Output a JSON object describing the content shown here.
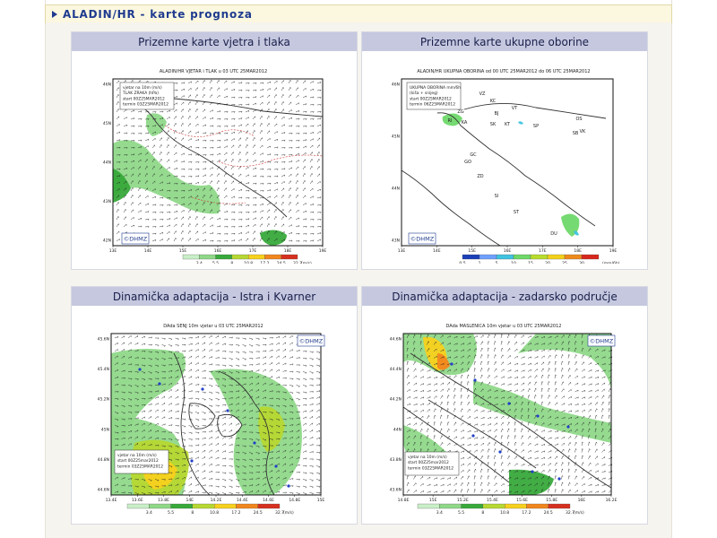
{
  "header": {
    "title": "ALADIN/HR - karte prognoza"
  },
  "colors": {
    "header_text": "#1f3b8f",
    "panel_title_bg": "#c5c8df",
    "land": "#ffffff",
    "sea": "#ffffff"
  },
  "panels": [
    {
      "title": "Prizemne karte vjetra i tlaka",
      "map_title": "ALADIN/HR VJETAR i TLAK u 03 UTC 25MAR2012",
      "legend_lines": [
        "vjetar na 10m (m/s)",
        "TLAK ZRAKA (hPa)",
        "start 00Z25MAR2012",
        "termin 03Z25MAR2012"
      ],
      "logo": "©DHMZ",
      "x_ticks": [
        "13E",
        "14E",
        "15E",
        "16E",
        "17E",
        "18E",
        "19E"
      ],
      "y_ticks": [
        "46N",
        "45N",
        "44N",
        "43N",
        "42N"
      ],
      "scale_values": [
        "3.4",
        "5.5",
        "8",
        "10.8",
        "17.2",
        "24.5",
        "32.7"
      ],
      "scale_unit": "(m/s)"
    },
    {
      "title": "Prizemne karte ukupne oborine",
      "map_title": "ALADIN/HR UKUPNA OBORINA od 00 UTC 25MAR2012 do 06 UTC 25MAR2012",
      "legend_lines": [
        "UKUPNA OBORINA mm/6h",
        "(kiša + snijeg)",
        "start 00Z25MAR2012",
        "termin 06Z25MAR2012"
      ],
      "logo": "©DHMZ",
      "x_ticks": [
        "13E",
        "14E",
        "15E",
        "16E",
        "17E",
        "18E",
        "19E"
      ],
      "y_ticks": [
        "46N",
        "45N",
        "44N",
        "43N"
      ],
      "city_codes": [
        "VZ",
        "KC",
        "ZG",
        "BJ",
        "VT",
        "KA",
        "SK",
        "KT",
        "OS",
        "GO",
        "SP",
        "SB",
        "VK",
        "RI",
        "GC",
        "ZD",
        "SI",
        "ST",
        "DU"
      ],
      "scale_values": [
        "0.5",
        "1",
        "5",
        "10",
        "15",
        "20",
        "25",
        "30"
      ],
      "scale_unit": "(mm/6h)"
    },
    {
      "title": "Dinamička adaptacija - Istra i Kvarner",
      "map_title": "DAda SENJ 10m vjetar u 03 UTC 25MAR2012",
      "legend_lines": [
        "vjetar na 10m (m/s)",
        "start 00Z25mar2012",
        "termin 03Z25MAR2012"
      ],
      "logo": "©DHMZ",
      "x_ticks": [
        "13.4E",
        "13.6E",
        "13.8E",
        "14E",
        "14.2E",
        "14.4E",
        "14.6E",
        "14.8E",
        "15E"
      ],
      "y_ticks": [
        "45.6N",
        "45.4N",
        "45.2N",
        "45N",
        "44.8N",
        "44.6N"
      ],
      "scale_values": [
        "3.4",
        "5.5",
        "8",
        "10.8",
        "17.2",
        "24.5",
        "32.7"
      ],
      "scale_unit": "(m/s)"
    },
    {
      "title": "Dinamička adaptacija - zadarsko područje",
      "map_title": "DAda MASLENICA 10m vjetar u 03 UTC 25MAR2012",
      "legend_lines": [
        "vjetar na 10m (m/s)",
        "start 00Z25mar2012",
        "termin 03Z25MAR2012"
      ],
      "logo": "©DHMZ",
      "x_ticks": [
        "14.8E",
        "15E",
        "15.2E",
        "15.4E",
        "15.6E",
        "15.8E",
        "16E",
        "16.2E"
      ],
      "y_ticks": [
        "44.6N",
        "44.4N",
        "44.2N",
        "44N",
        "43.8N",
        "43.6N"
      ],
      "scale_values": [
        "3.4",
        "5.5",
        "8",
        "10.8",
        "17.2",
        "24.5",
        "32.7"
      ],
      "scale_unit": "(m/s)"
    }
  ]
}
